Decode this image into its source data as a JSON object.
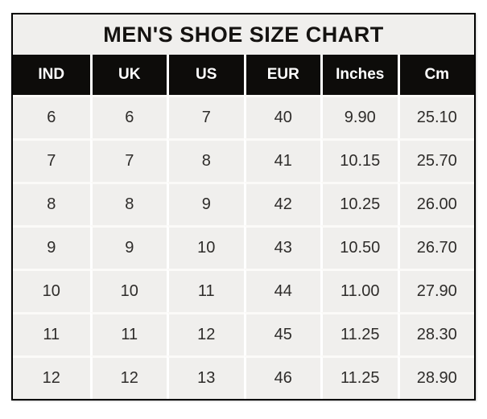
{
  "title": "MEN'S SHOE SIZE CHART",
  "colors": {
    "outer_border": "#000000",
    "title_bg": "#f0efed",
    "title_text": "#151311",
    "header_bg": "#0d0c0a",
    "header_text": "#ffffff",
    "cell_bg": "#f0efed",
    "cell_text": "#2e2c2a",
    "grid_line": "#ffffff",
    "page_bg": "#ffffff"
  },
  "table": {
    "columns": [
      "IND",
      "UK",
      "US",
      "EUR",
      "Inches",
      "Cm"
    ],
    "rows": [
      [
        "6",
        "6",
        "7",
        "40",
        "9.90",
        "25.10"
      ],
      [
        "7",
        "7",
        "8",
        "41",
        "10.15",
        "25.70"
      ],
      [
        "8",
        "8",
        "9",
        "42",
        "10.25",
        "26.00"
      ],
      [
        "9",
        "9",
        "10",
        "43",
        "10.50",
        "26.70"
      ],
      [
        "10",
        "10",
        "11",
        "44",
        "11.00",
        "27.90"
      ],
      [
        "11",
        "11",
        "12",
        "45",
        "11.25",
        "28.30"
      ],
      [
        "12",
        "12",
        "13",
        "46",
        "11.25",
        "28.90"
      ]
    ]
  },
  "chart_data": {
    "type": "table",
    "title": "MEN'S SHOE SIZE CHART",
    "columns": [
      "IND",
      "UK",
      "US",
      "EUR",
      "Inches",
      "Cm"
    ],
    "rows": [
      [
        6,
        6,
        7,
        40,
        9.9,
        25.1
      ],
      [
        7,
        7,
        8,
        41,
        10.15,
        25.7
      ],
      [
        8,
        8,
        9,
        42,
        10.25,
        26.0
      ],
      [
        9,
        9,
        10,
        43,
        10.5,
        26.7
      ],
      [
        10,
        10,
        11,
        44,
        11.0,
        27.9
      ],
      [
        11,
        11,
        12,
        45,
        11.25,
        28.3
      ],
      [
        12,
        12,
        13,
        46,
        11.25,
        28.9
      ]
    ],
    "layout": {
      "header_style": "black background, white bold text",
      "body_style": "light gray cells, white gridlines",
      "legend_position": "none",
      "grid": true
    }
  }
}
